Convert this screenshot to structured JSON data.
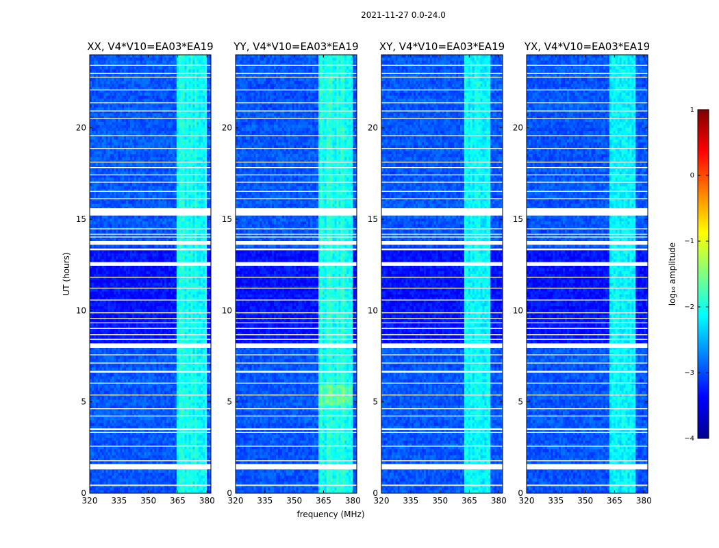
{
  "title": "2021-11-27 0.0-24.0",
  "chart_data": {
    "type": "heatmap",
    "title": "2021-11-27 0.0-24.0",
    "xlabel": "frequency (MHz)",
    "ylabel": "UT (hours)",
    "xlim": [
      320,
      382
    ],
    "ylim": [
      0,
      24
    ],
    "x_ticks": [
      320,
      335,
      350,
      365,
      380
    ],
    "y_ticks": [
      0,
      5,
      10,
      15,
      20
    ],
    "panels": [
      {
        "title": "XX, V4*V10=EA03*EA19",
        "bright_band_mhz": [
          364,
          379.5
        ],
        "peak_log10_amplitude": -1.3
      },
      {
        "title": "YY, V4*V10=EA03*EA19",
        "bright_band_mhz": [
          362,
          380
        ],
        "peak_log10_amplitude": -1.2
      },
      {
        "title": "XY, V4*V10=EA03*EA19",
        "bright_band_mhz": [
          362,
          376
        ],
        "peak_log10_amplitude": -1.5
      },
      {
        "title": "YX, V4*V10=EA03*EA19",
        "bright_band_mhz": [
          362,
          376
        ],
        "peak_log10_amplitude": -1.6
      }
    ],
    "flagged_ut_hours": [
      [
        0.4,
        0.47
      ],
      [
        1.3,
        1.6
      ],
      [
        1.75,
        1.8
      ],
      [
        2.55,
        2.6
      ],
      [
        3.3,
        3.35
      ],
      [
        3.45,
        3.55
      ],
      [
        4.2,
        4.25
      ],
      [
        4.6,
        4.65
      ],
      [
        5.35,
        5.4
      ],
      [
        6.0,
        6.05
      ],
      [
        6.6,
        6.7
      ],
      [
        7.1,
        7.15
      ],
      [
        7.55,
        7.6
      ],
      [
        7.95,
        8.2
      ],
      [
        8.4,
        8.45
      ],
      [
        8.65,
        8.7
      ],
      [
        9.0,
        9.05
      ],
      [
        9.3,
        9.35
      ],
      [
        9.55,
        9.6
      ],
      [
        9.85,
        9.9
      ],
      [
        10.55,
        10.6
      ],
      [
        11.2,
        11.25
      ],
      [
        11.8,
        11.85
      ],
      [
        12.45,
        12.65
      ],
      [
        13.3,
        13.4
      ],
      [
        13.6,
        13.8
      ],
      [
        14.0,
        14.05
      ],
      [
        14.15,
        14.2
      ],
      [
        14.45,
        14.5
      ],
      [
        15.2,
        15.6
      ],
      [
        16.1,
        16.15
      ],
      [
        16.5,
        16.55
      ],
      [
        17.0,
        17.05
      ],
      [
        17.4,
        17.45
      ],
      [
        17.8,
        17.85
      ],
      [
        18.1,
        18.15
      ],
      [
        18.85,
        18.9
      ],
      [
        19.55,
        19.6
      ],
      [
        20.5,
        20.55
      ],
      [
        20.9,
        20.95
      ],
      [
        21.35,
        21.4
      ],
      [
        22.05,
        22.1
      ],
      [
        22.75,
        22.8
      ],
      [
        22.95,
        23.0
      ],
      [
        23.4,
        23.45
      ]
    ],
    "colorbar": {
      "label": "log₁₀ amplitude",
      "range": [
        -4,
        1
      ],
      "ticks": [
        "1",
        "0",
        "−1",
        "−2",
        "−3",
        "−4"
      ],
      "tick_values": [
        1,
        0,
        -1,
        -2,
        -3,
        -4
      ],
      "colormap": "jet"
    }
  }
}
